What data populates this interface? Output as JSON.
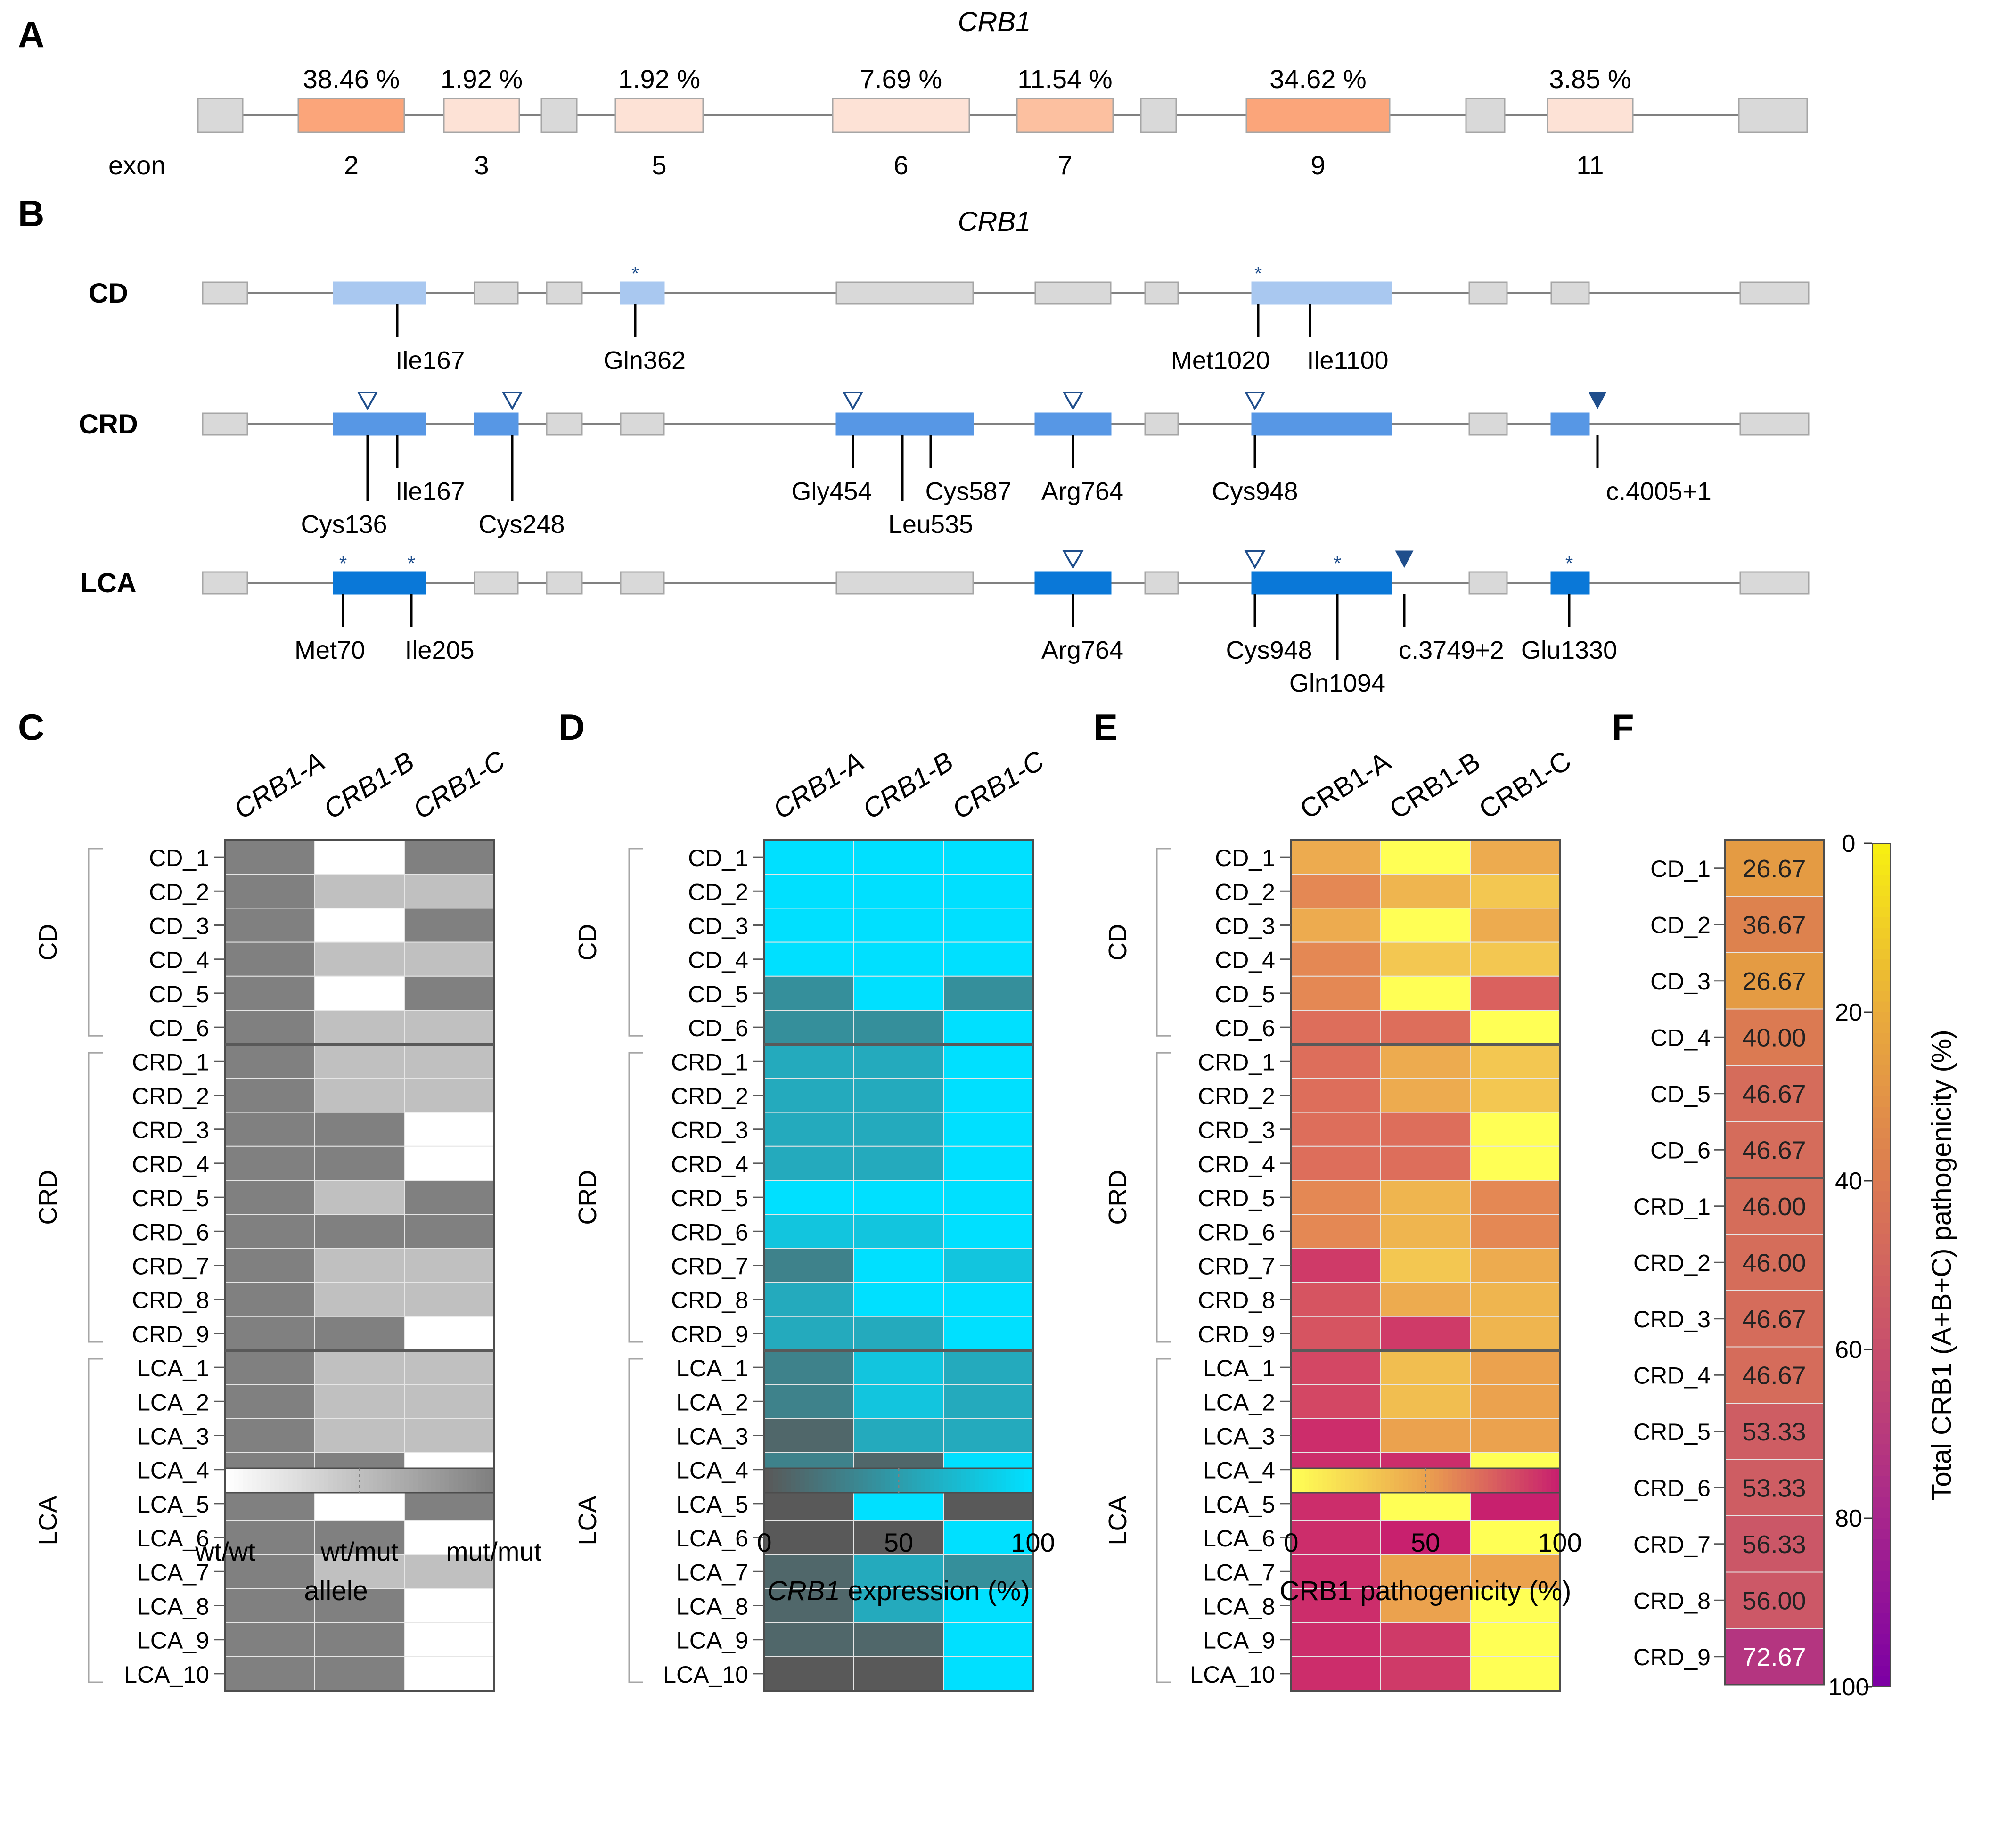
{
  "colors": {
    "gene_grey_fill": "#d9d9d9",
    "gene_grey_stroke": "#a6a6a6",
    "intron_line": "#808080",
    "mark_blue": "#1f4e8c",
    "cd_blue": "#a9c8f0",
    "crd_blue": "#5797e5",
    "lca_blue": "#0a78d8",
    "freq_low": "#fde2d6",
    "freq_mid": "#fcc0a0",
    "freq_high": "#fba57a",
    "allele_wtwt": "#ffffff",
    "allele_wtmut": "#c0c0c0",
    "allele_mutmut": "#808080",
    "expr_0": "#595959",
    "expr_100": "#00e0ff",
    "patho_0": "#ffff55",
    "patho_50": "#eba24e",
    "patho_100": "#c8206e"
  },
  "panel_letters": [
    "A",
    "B",
    "C",
    "D",
    "E",
    "F"
  ],
  "panelA": {
    "title": "CRB1",
    "exon_word": "exon",
    "exons": [
      {
        "exon": "2",
        "pct": "38.46 %",
        "value": 38.46
      },
      {
        "exon": "3",
        "pct": "1.92 %",
        "value": 1.92
      },
      {
        "exon": "5",
        "pct": "1.92 %",
        "value": 1.92
      },
      {
        "exon": "6",
        "pct": "7.69 %",
        "value": 7.69
      },
      {
        "exon": "7",
        "pct": "11.54 %",
        "value": 11.54
      },
      {
        "exon": "9",
        "pct": "34.62 %",
        "value": 34.62
      },
      {
        "exon": "11",
        "pct": "3.85 %",
        "value": 3.85
      }
    ]
  },
  "panelB": {
    "title": "CRB1",
    "tracks": [
      {
        "label": "CD",
        "highlighted_exons": [
          "2",
          "5",
          "9"
        ],
        "variants": [
          {
            "text": "Ile167",
            "exon": "2",
            "tier": 1,
            "marker": ""
          },
          {
            "text": "Gln362",
            "exon": "5",
            "tier": 1,
            "marker": "star"
          },
          {
            "text": "Met1020",
            "exon": "9",
            "tier": 1,
            "marker": "star"
          },
          {
            "text": "Ile1100",
            "exon": "9",
            "tier": 1,
            "marker": ""
          }
        ]
      },
      {
        "label": "CRD",
        "highlighted_exons": [
          "2",
          "3",
          "6",
          "7",
          "9",
          "11"
        ],
        "variants": [
          {
            "text": "Cys136",
            "exon": "2",
            "tier": 2,
            "marker": "open"
          },
          {
            "text": "Ile167",
            "exon": "2",
            "tier": 1,
            "marker": ""
          },
          {
            "text": "Cys248",
            "exon": "3",
            "tier": 2,
            "marker": "open"
          },
          {
            "text": "Gly454",
            "exon": "6",
            "tier": 1,
            "marker": "open"
          },
          {
            "text": "Leu535",
            "exon": "6",
            "tier": 2,
            "marker": ""
          },
          {
            "text": "Cys587",
            "exon": "6",
            "tier": 1,
            "marker": ""
          },
          {
            "text": "Arg764",
            "exon": "7",
            "tier": 1,
            "marker": "open"
          },
          {
            "text": "Cys948",
            "exon": "9",
            "tier": 1,
            "marker": "open"
          },
          {
            "text": "c.4005+1",
            "exon": "11",
            "tier": 1,
            "marker": "filled"
          }
        ]
      },
      {
        "label": "LCA",
        "highlighted_exons": [
          "2",
          "7",
          "9",
          "11"
        ],
        "variants": [
          {
            "text": "Met70",
            "exon": "2",
            "tier": 1,
            "marker": "star"
          },
          {
            "text": "Ile205",
            "exon": "2",
            "tier": 1,
            "marker": "star"
          },
          {
            "text": "Arg764",
            "exon": "7",
            "tier": 1,
            "marker": "open"
          },
          {
            "text": "Cys948",
            "exon": "9",
            "tier": 1,
            "marker": "open"
          },
          {
            "text": "Gln1094",
            "exon": "9",
            "tier": 2,
            "marker": "star"
          },
          {
            "text": "c.3749+2",
            "exon": "9",
            "tier": 1,
            "marker": "filled"
          },
          {
            "text": "Glu1330",
            "exon": "11",
            "tier": 1,
            "marker": "star"
          }
        ]
      }
    ]
  },
  "heatmaps": {
    "row_labels": [
      "CD_1",
      "CD_2",
      "CD_3",
      "CD_4",
      "CD_5",
      "CD_6",
      "CRD_1",
      "CRD_2",
      "CRD_3",
      "CRD_4",
      "CRD_5",
      "CRD_6",
      "CRD_7",
      "CRD_8",
      "CRD_9",
      "LCA_1",
      "LCA_2",
      "LCA_3",
      "LCA_4",
      "LCA_5",
      "LCA_6",
      "LCA_7",
      "LCA_8",
      "LCA_9",
      "LCA_10"
    ],
    "groups": [
      {
        "label": "CD",
        "start": 0,
        "end": 5
      },
      {
        "label": "CRD",
        "start": 6,
        "end": 14
      },
      {
        "label": "LCA",
        "start": 15,
        "end": 24
      }
    ]
  },
  "chart_data": [
    {
      "panel": "C",
      "type": "heatmap",
      "columns": [
        "CRB1-A",
        "CRB1-B",
        "CRB1-C"
      ],
      "columns_italic": true,
      "value_encoding": "0 = wt/wt, 1 = wt/mut, 2 = mut/mut",
      "values": [
        [
          2,
          0,
          2
        ],
        [
          2,
          1,
          1
        ],
        [
          2,
          0,
          2
        ],
        [
          2,
          1,
          1
        ],
        [
          2,
          0,
          2
        ],
        [
          2,
          1,
          1
        ],
        [
          2,
          1,
          1
        ],
        [
          2,
          1,
          1
        ],
        [
          2,
          2,
          0
        ],
        [
          2,
          2,
          0
        ],
        [
          2,
          1,
          2
        ],
        [
          2,
          2,
          2
        ],
        [
          2,
          1,
          1
        ],
        [
          2,
          1,
          1
        ],
        [
          2,
          2,
          0
        ],
        [
          2,
          1,
          1
        ],
        [
          2,
          1,
          1
        ],
        [
          2,
          1,
          1
        ],
        [
          2,
          2,
          0
        ],
        [
          2,
          0,
          2
        ],
        [
          2,
          2,
          0
        ],
        [
          2,
          1,
          1
        ],
        [
          2,
          2,
          0
        ],
        [
          2,
          2,
          0
        ],
        [
          2,
          2,
          0
        ]
      ],
      "legend_ticks": [
        "wt/wt",
        "wt/mut",
        "mut/mut"
      ],
      "legend_title": "allele"
    },
    {
      "panel": "D",
      "type": "heatmap",
      "columns": [
        "CRB1-A",
        "CRB1-B",
        "CRB1-C"
      ],
      "columns_italic": true,
      "value_range": [
        0,
        100
      ],
      "values": [
        [
          100,
          100,
          100
        ],
        [
          100,
          100,
          100
        ],
        [
          100,
          100,
          100
        ],
        [
          100,
          100,
          100
        ],
        [
          40,
          100,
          40
        ],
        [
          40,
          40,
          100
        ],
        [
          60,
          60,
          100
        ],
        [
          60,
          60,
          100
        ],
        [
          60,
          60,
          100
        ],
        [
          60,
          60,
          100
        ],
        [
          100,
          100,
          100
        ],
        [
          80,
          80,
          100
        ],
        [
          30,
          100,
          80
        ],
        [
          60,
          100,
          100
        ],
        [
          60,
          60,
          100
        ],
        [
          30,
          80,
          60
        ],
        [
          30,
          80,
          60
        ],
        [
          10,
          60,
          60
        ],
        [
          30,
          10,
          100
        ],
        [
          0,
          100,
          0
        ],
        [
          0,
          0,
          100
        ],
        [
          10,
          60,
          40
        ],
        [
          10,
          60,
          100
        ],
        [
          10,
          10,
          100
        ],
        [
          0,
          0,
          100
        ]
      ],
      "legend_ticks": [
        "0",
        "50",
        "100"
      ],
      "legend_title_italic": "CRB1",
      "legend_title_rest": " expression (%)"
    },
    {
      "panel": "E",
      "type": "heatmap",
      "columns": [
        "CRB1-A",
        "CRB1-B",
        "CRB1-C"
      ],
      "columns_italic": false,
      "value_range": [
        0,
        100
      ],
      "values": [
        [
          45,
          0,
          45
        ],
        [
          60,
          40,
          30
        ],
        [
          45,
          0,
          45
        ],
        [
          60,
          30,
          30
        ],
        [
          60,
          0,
          75
        ],
        [
          70,
          70,
          0
        ],
        [
          70,
          45,
          30
        ],
        [
          70,
          45,
          30
        ],
        [
          70,
          70,
          0
        ],
        [
          70,
          70,
          0
        ],
        [
          60,
          40,
          60
        ],
        [
          60,
          40,
          60
        ],
        [
          90,
          30,
          45
        ],
        [
          80,
          45,
          40
        ],
        [
          80,
          90,
          40
        ],
        [
          85,
          35,
          50
        ],
        [
          85,
          35,
          50
        ],
        [
          95,
          50,
          50
        ],
        [
          95,
          95,
          0
        ],
        [
          95,
          0,
          100
        ],
        [
          95,
          100,
          0
        ],
        [
          95,
          50,
          50
        ],
        [
          95,
          50,
          0
        ],
        [
          95,
          90,
          0
        ],
        [
          95,
          90,
          0
        ]
      ],
      "legend_ticks": [
        "0",
        "50",
        "100"
      ],
      "legend_title": "CRB1 pathogenicity (%)"
    },
    {
      "panel": "F",
      "type": "heatmap",
      "rows": [
        "CD_1",
        "CD_2",
        "CD_3",
        "CD_4",
        "CD_5",
        "CD_6",
        "CRD_1",
        "CRD_2",
        "CRD_3",
        "CRD_4",
        "CRD_5",
        "CRD_6",
        "CRD_7",
        "CRD_8",
        "CRD_9"
      ],
      "values": [
        26.67,
        36.67,
        26.67,
        40.0,
        46.67,
        46.67,
        46.0,
        46.0,
        46.67,
        46.67,
        53.33,
        53.33,
        56.33,
        56.0,
        72.67
      ],
      "value_labels": [
        "26.67",
        "36.67",
        "26.67",
        "40.00",
        "46.67",
        "46.67",
        "46.00",
        "46.00",
        "46.67",
        "46.67",
        "53.33",
        "53.33",
        "56.33",
        "56.00",
        "72.67"
      ],
      "colorbar_range": [
        0,
        100
      ],
      "colorbar_ticks": [
        "0",
        "20",
        "40",
        "60",
        "80",
        "100"
      ],
      "colorbar_colors": [
        "#f7ee12",
        "#e9ab3c",
        "#db7a52",
        "#c84f6c",
        "#a8268c",
        "#7d00a4"
      ],
      "colorbar_label": "Total CRB1 (A+B+C) pathogenicity (%)"
    }
  ]
}
